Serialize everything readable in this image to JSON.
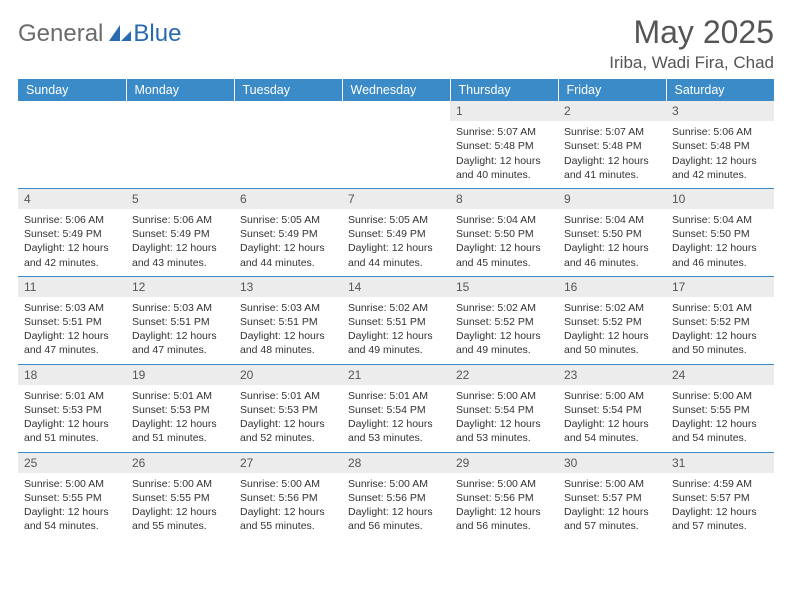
{
  "brand": {
    "general": "General",
    "blue": "Blue"
  },
  "title": "May 2025",
  "location": "Iriba, Wadi Fira, Chad",
  "header_bg": "#3b8bc9",
  "header_text": "#ffffff",
  "daynum_bg": "#ececec",
  "divider_color": "#3b8bc9",
  "weekdays": [
    "Sunday",
    "Monday",
    "Tuesday",
    "Wednesday",
    "Thursday",
    "Friday",
    "Saturday"
  ],
  "weeks": [
    [
      null,
      null,
      null,
      null,
      {
        "n": "1",
        "sr": "5:07 AM",
        "ss": "5:48 PM",
        "dl": "12 hours and 40 minutes."
      },
      {
        "n": "2",
        "sr": "5:07 AM",
        "ss": "5:48 PM",
        "dl": "12 hours and 41 minutes."
      },
      {
        "n": "3",
        "sr": "5:06 AM",
        "ss": "5:48 PM",
        "dl": "12 hours and 42 minutes."
      }
    ],
    [
      {
        "n": "4",
        "sr": "5:06 AM",
        "ss": "5:49 PM",
        "dl": "12 hours and 42 minutes."
      },
      {
        "n": "5",
        "sr": "5:06 AM",
        "ss": "5:49 PM",
        "dl": "12 hours and 43 minutes."
      },
      {
        "n": "6",
        "sr": "5:05 AM",
        "ss": "5:49 PM",
        "dl": "12 hours and 44 minutes."
      },
      {
        "n": "7",
        "sr": "5:05 AM",
        "ss": "5:49 PM",
        "dl": "12 hours and 44 minutes."
      },
      {
        "n": "8",
        "sr": "5:04 AM",
        "ss": "5:50 PM",
        "dl": "12 hours and 45 minutes."
      },
      {
        "n": "9",
        "sr": "5:04 AM",
        "ss": "5:50 PM",
        "dl": "12 hours and 46 minutes."
      },
      {
        "n": "10",
        "sr": "5:04 AM",
        "ss": "5:50 PM",
        "dl": "12 hours and 46 minutes."
      }
    ],
    [
      {
        "n": "11",
        "sr": "5:03 AM",
        "ss": "5:51 PM",
        "dl": "12 hours and 47 minutes."
      },
      {
        "n": "12",
        "sr": "5:03 AM",
        "ss": "5:51 PM",
        "dl": "12 hours and 47 minutes."
      },
      {
        "n": "13",
        "sr": "5:03 AM",
        "ss": "5:51 PM",
        "dl": "12 hours and 48 minutes."
      },
      {
        "n": "14",
        "sr": "5:02 AM",
        "ss": "5:51 PM",
        "dl": "12 hours and 49 minutes."
      },
      {
        "n": "15",
        "sr": "5:02 AM",
        "ss": "5:52 PM",
        "dl": "12 hours and 49 minutes."
      },
      {
        "n": "16",
        "sr": "5:02 AM",
        "ss": "5:52 PM",
        "dl": "12 hours and 50 minutes."
      },
      {
        "n": "17",
        "sr": "5:01 AM",
        "ss": "5:52 PM",
        "dl": "12 hours and 50 minutes."
      }
    ],
    [
      {
        "n": "18",
        "sr": "5:01 AM",
        "ss": "5:53 PM",
        "dl": "12 hours and 51 minutes."
      },
      {
        "n": "19",
        "sr": "5:01 AM",
        "ss": "5:53 PM",
        "dl": "12 hours and 51 minutes."
      },
      {
        "n": "20",
        "sr": "5:01 AM",
        "ss": "5:53 PM",
        "dl": "12 hours and 52 minutes."
      },
      {
        "n": "21",
        "sr": "5:01 AM",
        "ss": "5:54 PM",
        "dl": "12 hours and 53 minutes."
      },
      {
        "n": "22",
        "sr": "5:00 AM",
        "ss": "5:54 PM",
        "dl": "12 hours and 53 minutes."
      },
      {
        "n": "23",
        "sr": "5:00 AM",
        "ss": "5:54 PM",
        "dl": "12 hours and 54 minutes."
      },
      {
        "n": "24",
        "sr": "5:00 AM",
        "ss": "5:55 PM",
        "dl": "12 hours and 54 minutes."
      }
    ],
    [
      {
        "n": "25",
        "sr": "5:00 AM",
        "ss": "5:55 PM",
        "dl": "12 hours and 54 minutes."
      },
      {
        "n": "26",
        "sr": "5:00 AM",
        "ss": "5:55 PM",
        "dl": "12 hours and 55 minutes."
      },
      {
        "n": "27",
        "sr": "5:00 AM",
        "ss": "5:56 PM",
        "dl": "12 hours and 55 minutes."
      },
      {
        "n": "28",
        "sr": "5:00 AM",
        "ss": "5:56 PM",
        "dl": "12 hours and 56 minutes."
      },
      {
        "n": "29",
        "sr": "5:00 AM",
        "ss": "5:56 PM",
        "dl": "12 hours and 56 minutes."
      },
      {
        "n": "30",
        "sr": "5:00 AM",
        "ss": "5:57 PM",
        "dl": "12 hours and 57 minutes."
      },
      {
        "n": "31",
        "sr": "4:59 AM",
        "ss": "5:57 PM",
        "dl": "12 hours and 57 minutes."
      }
    ]
  ],
  "labels": {
    "sunrise": "Sunrise:",
    "sunset": "Sunset:",
    "daylight": "Daylight:"
  }
}
